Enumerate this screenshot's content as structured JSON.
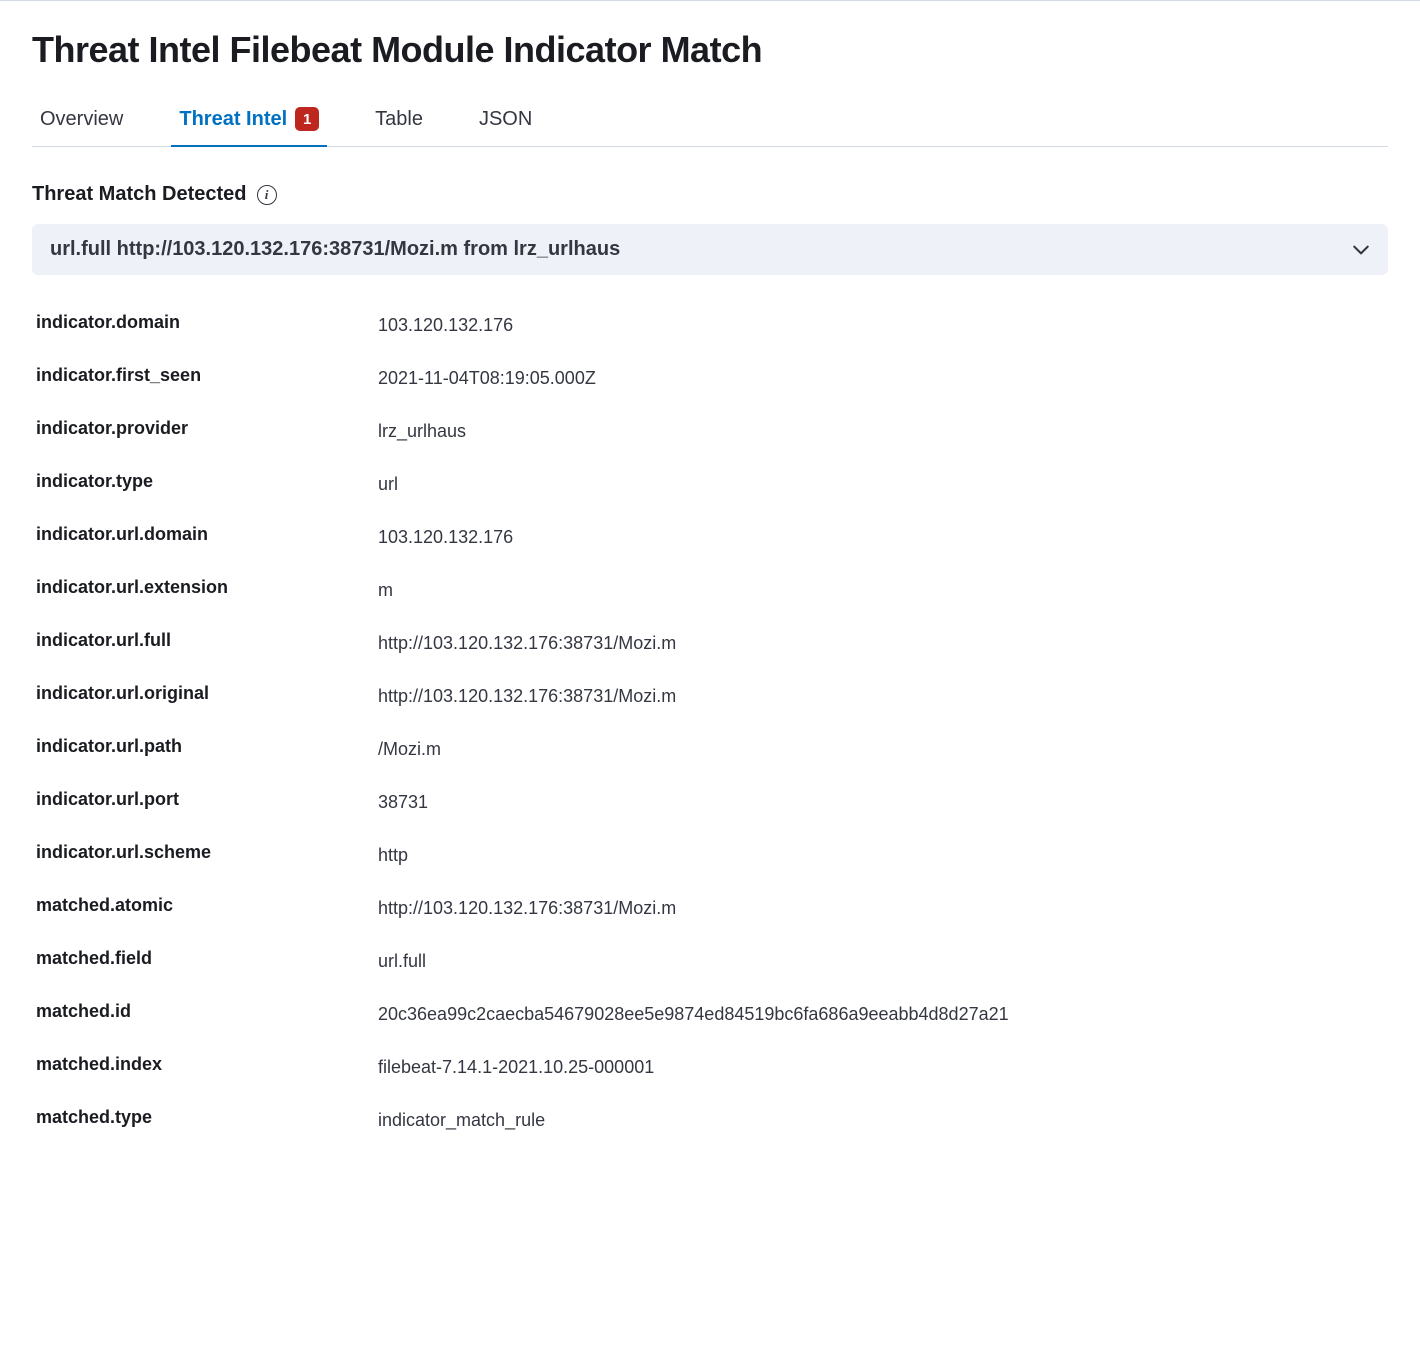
{
  "colors": {
    "text_primary": "#1a1c21",
    "text_secondary": "#343741",
    "divider": "#d3dae6",
    "tab_active": "#0071c2",
    "badge_bg": "#bd271e",
    "badge_fg": "#ffffff",
    "accordion_bg": "#eef2f8",
    "page_bg": "#ffffff"
  },
  "page": {
    "title": "Threat Intel Filebeat Module Indicator Match"
  },
  "tabs": [
    {
      "label": "Overview",
      "active": false
    },
    {
      "label": "Threat Intel",
      "active": true,
      "badge": "1"
    },
    {
      "label": "Table",
      "active": false
    },
    {
      "label": "JSON",
      "active": false
    }
  ],
  "section": {
    "heading": "Threat Match Detected",
    "accordion_title": "url.full http://103.120.132.176:38731/Mozi.m from lrz_urlhaus"
  },
  "details": [
    {
      "key": "indicator.domain",
      "value": "103.120.132.176"
    },
    {
      "key": "indicator.first_seen",
      "value": "2021-11-04T08:19:05.000Z"
    },
    {
      "key": "indicator.provider",
      "value": "lrz_urlhaus"
    },
    {
      "key": "indicator.type",
      "value": "url"
    },
    {
      "key": "indicator.url.domain",
      "value": "103.120.132.176"
    },
    {
      "key": "indicator.url.extension",
      "value": "m"
    },
    {
      "key": "indicator.url.full",
      "value": "http://103.120.132.176:38731/Mozi.m"
    },
    {
      "key": "indicator.url.original",
      "value": "http://103.120.132.176:38731/Mozi.m"
    },
    {
      "key": "indicator.url.path",
      "value": "/Mozi.m"
    },
    {
      "key": "indicator.url.port",
      "value": "38731"
    },
    {
      "key": "indicator.url.scheme",
      "value": "http"
    },
    {
      "key": "matched.atomic",
      "value": "http://103.120.132.176:38731/Mozi.m"
    },
    {
      "key": "matched.field",
      "value": "url.full"
    },
    {
      "key": "matched.id",
      "value": "20c36ea99c2caecba54679028ee5e9874ed84519bc6fa686a9eeabb4d8d27a21"
    },
    {
      "key": "matched.index",
      "value": "filebeat-7.14.1-2021.10.25-000001"
    },
    {
      "key": "matched.type",
      "value": "indicator_match_rule"
    }
  ]
}
